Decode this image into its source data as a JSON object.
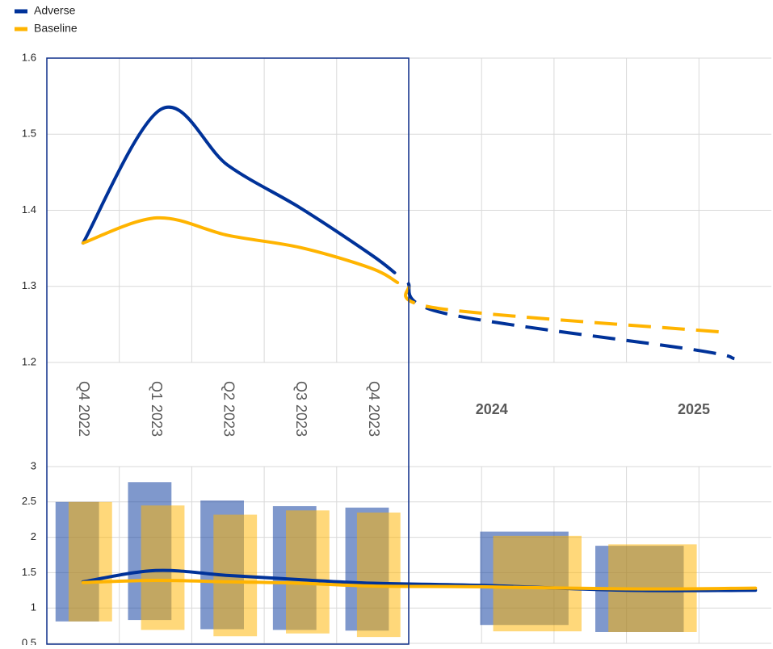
{
  "chart_data": [
    {
      "type": "line",
      "xlim": [
        0,
        10
      ],
      "ylim": [
        1.2,
        1.6
      ],
      "yticks": [
        1.2,
        1.3,
        1.4,
        1.5,
        1.6
      ],
      "grid": true,
      "legend": "top-left",
      "categories": [
        "Q4 2022",
        "Q1 2023",
        "Q2 2023",
        "Q3 2023",
        "Q4 2023",
        "2024",
        "2025"
      ],
      "category_x": [
        0.5,
        1.5,
        2.5,
        3.5,
        4.5,
        6.14,
        8.93
      ],
      "series": [
        {
          "name": "Adverse",
          "color": "#003299",
          "segments": [
            {
              "style": "solid",
              "x": [
                0.5,
                1.58,
                2.5,
                3.5,
                4.47,
                4.8
              ],
              "values": [
                1.357,
                1.533,
                1.459,
                1.403,
                1.342,
                1.318
              ]
            },
            {
              "style": "dashed",
              "x": [
                4.98,
                5.47,
                8.91,
                9.49
              ],
              "values": [
                1.305,
                1.265,
                1.217,
                1.205
              ]
            }
          ]
        },
        {
          "name": "Baseline",
          "color": "#ffb400",
          "segments": [
            {
              "style": "solid",
              "x": [
                0.5,
                1.52,
                2.5,
                3.5,
                4.47,
                4.84
              ],
              "values": [
                1.357,
                1.39,
                1.367,
                1.351,
                1.324,
                1.305
              ]
            },
            {
              "style": "dashed",
              "x": [
                4.98,
                5.41,
                9.31
              ],
              "values": [
                1.3,
                1.271,
                1.24
              ]
            }
          ]
        }
      ]
    },
    {
      "type": "range_bar",
      "xlim": [
        0,
        10
      ],
      "ylim": [
        0.5,
        3
      ],
      "yticks": [
        0.5,
        1,
        1.5,
        2,
        2.5,
        3
      ],
      "grid": true,
      "series": [
        {
          "color": "#003299",
          "x": [
            0.42,
            1.42,
            2.42,
            3.42,
            4.42,
            6.59,
            8.18
          ],
          "low": [
            0.81,
            0.83,
            0.7,
            0.69,
            0.68,
            0.76,
            0.66
          ],
          "high": [
            2.5,
            2.78,
            2.52,
            2.44,
            2.42,
            2.08,
            1.88
          ],
          "line_x": [
            0.5,
            1.5,
            2.5,
            3.5,
            4.5,
            6,
            8,
            9.78
          ],
          "line_values": [
            1.37,
            1.53,
            1.46,
            1.4,
            1.35,
            1.32,
            1.25,
            1.25
          ]
        },
        {
          "color": "#ffb400",
          "x": [
            0.6,
            1.6,
            2.6,
            3.6,
            4.58,
            6.77,
            8.36
          ],
          "low": [
            0.81,
            0.69,
            0.6,
            0.64,
            0.59,
            0.67,
            0.66
          ],
          "high": [
            2.5,
            2.45,
            2.32,
            2.38,
            2.35,
            2.02,
            1.9
          ],
          "line_x": [
            0.5,
            1.5,
            2.5,
            3.5,
            4.5,
            6,
            8,
            9.78
          ],
          "line_values": [
            1.36,
            1.39,
            1.37,
            1.35,
            1.31,
            1.3,
            1.27,
            1.28
          ]
        }
      ]
    }
  ]
}
